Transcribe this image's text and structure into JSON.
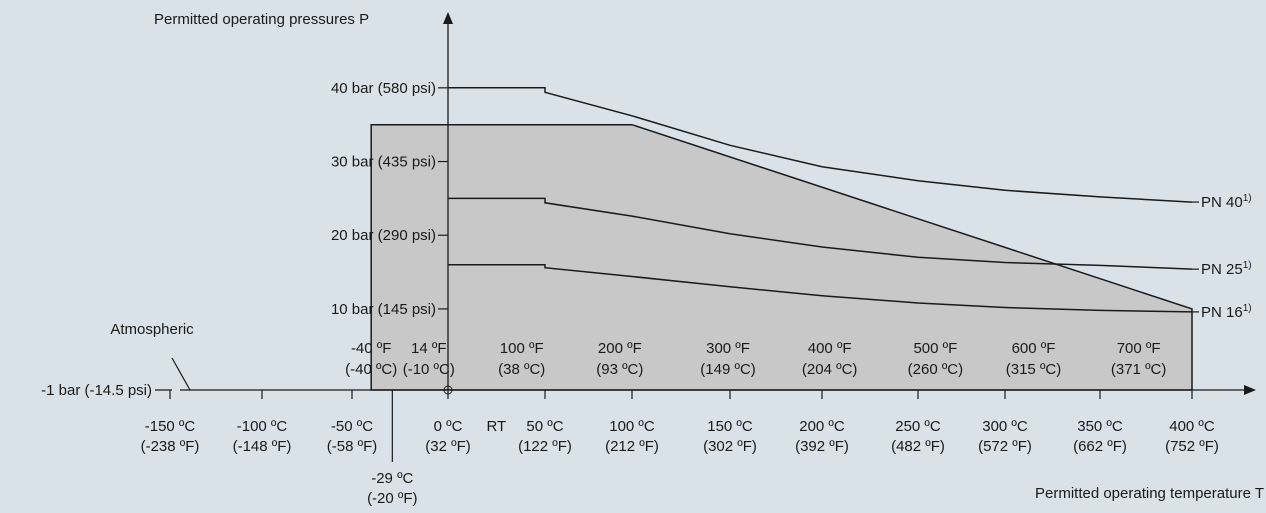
{
  "chart_data": {
    "type": "line",
    "xlabel": "Permitted operating temperature T",
    "ylabel": "Permitted operating pressures P",
    "xlim": [
      -200,
      400
    ],
    "ylim": [
      -1,
      40
    ],
    "x_ticks_c": [
      {
        "value": -150,
        "c": "-150 ºC",
        "f": "(-238 ºF)"
      },
      {
        "value": -100,
        "c": "-100 ºC",
        "f": "(-148 ºF)"
      },
      {
        "value": -50,
        "c": "-50 ºC",
        "f": "(-58 ºF)"
      },
      {
        "value": 0,
        "c": "0 ºC",
        "f": "(32 ºF)"
      },
      {
        "value": 50,
        "c": "50 ºC",
        "f": "(122 ºF)"
      },
      {
        "value": 100,
        "c": "100 ºC",
        "f": "(212 ºF)"
      },
      {
        "value": 150,
        "c": "150 ºC",
        "f": "(302 ºF)"
      },
      {
        "value": 200,
        "c": "200 ºC",
        "f": "(392 ºF)"
      },
      {
        "value": 250,
        "c": "250 ºC",
        "f": "(482 ºF)"
      },
      {
        "value": 300,
        "c": "300 ºC",
        "f": "(572 ºF)"
      },
      {
        "value": 350,
        "c": "350 ºC",
        "f": "(662 ºF)"
      },
      {
        "value": 400,
        "c": "400 ºC",
        "f": "(752 ºF)"
      }
    ],
    "rt_label": {
      "value": 27,
      "text": "RT"
    },
    "extra_x_label": {
      "value": -29,
      "c": "-29 ºC",
      "f": "(-20 ºF)"
    },
    "x_ticks_f": [
      {
        "value": -40,
        "f": "-40 ºF",
        "c": "(-40 ºC)"
      },
      {
        "value": -10,
        "f": "14 ºF",
        "c": "(-10 ºC)"
      },
      {
        "value": 38,
        "f": "100 ºF",
        "c": "(38 ºC)"
      },
      {
        "value": 93,
        "f": "200 ºF",
        "c": "(93 ºC)"
      },
      {
        "value": 149,
        "f": "300 ºF",
        "c": "(149 ºC)"
      },
      {
        "value": 204,
        "f": "400 ºF",
        "c": "(204 ºC)"
      },
      {
        "value": 260,
        "f": "500 ºF",
        "c": "(260 ºC)"
      },
      {
        "value": 315,
        "f": "600 ºF",
        "c": "(315 ºC)"
      },
      {
        "value": 371,
        "f": "700 ºF",
        "c": "(371 ºC)"
      }
    ],
    "y_ticks": [
      {
        "value": 10,
        "label": "10 bar (145 psi)"
      },
      {
        "value": 20,
        "label": "20 bar (290 psi)"
      },
      {
        "value": 30,
        "label": "30 bar (435 psi)"
      },
      {
        "value": 40,
        "label": "40 bar (580 psi)"
      }
    ],
    "baseline": {
      "value": -1,
      "label": "-1 bar (-14.5 psi)",
      "annotation": "Atmospheric"
    },
    "envelope": {
      "fill": "#c8c8c8",
      "points": [
        [
          -40,
          -1
        ],
        [
          -40,
          35
        ],
        [
          100,
          35
        ],
        [
          400,
          10
        ],
        [
          400,
          -1
        ]
      ]
    },
    "series": [
      {
        "name": "PN 40",
        "sup": "1)",
        "points": [
          [
            0,
            40
          ],
          [
            50,
            40
          ],
          [
            50,
            39.4
          ],
          [
            100,
            36.2
          ],
          [
            150,
            32.2
          ],
          [
            200,
            29.3
          ],
          [
            250,
            27.4
          ],
          [
            300,
            26.1
          ],
          [
            350,
            25.2
          ],
          [
            400,
            24.5
          ]
        ]
      },
      {
        "name": "PN 25",
        "sup": "1)",
        "points": [
          [
            0,
            25
          ],
          [
            50,
            25
          ],
          [
            50,
            24.4
          ],
          [
            100,
            22.6
          ],
          [
            150,
            20.2
          ],
          [
            200,
            18.4
          ],
          [
            250,
            17
          ],
          [
            300,
            16.3
          ],
          [
            350,
            15.9
          ],
          [
            400,
            15.4
          ]
        ]
      },
      {
        "name": "PN 16",
        "sup": "1)",
        "points": [
          [
            0,
            16
          ],
          [
            50,
            16
          ],
          [
            50,
            15.6
          ],
          [
            100,
            14.4
          ],
          [
            150,
            13
          ],
          [
            200,
            11.8
          ],
          [
            250,
            10.8
          ],
          [
            300,
            10.2
          ],
          [
            350,
            9.8
          ],
          [
            400,
            9.6
          ]
        ]
      }
    ],
    "colors": {
      "background": "#d8e2e8",
      "envelope": "#c8c8c8",
      "line": "#1a1a1a"
    }
  }
}
